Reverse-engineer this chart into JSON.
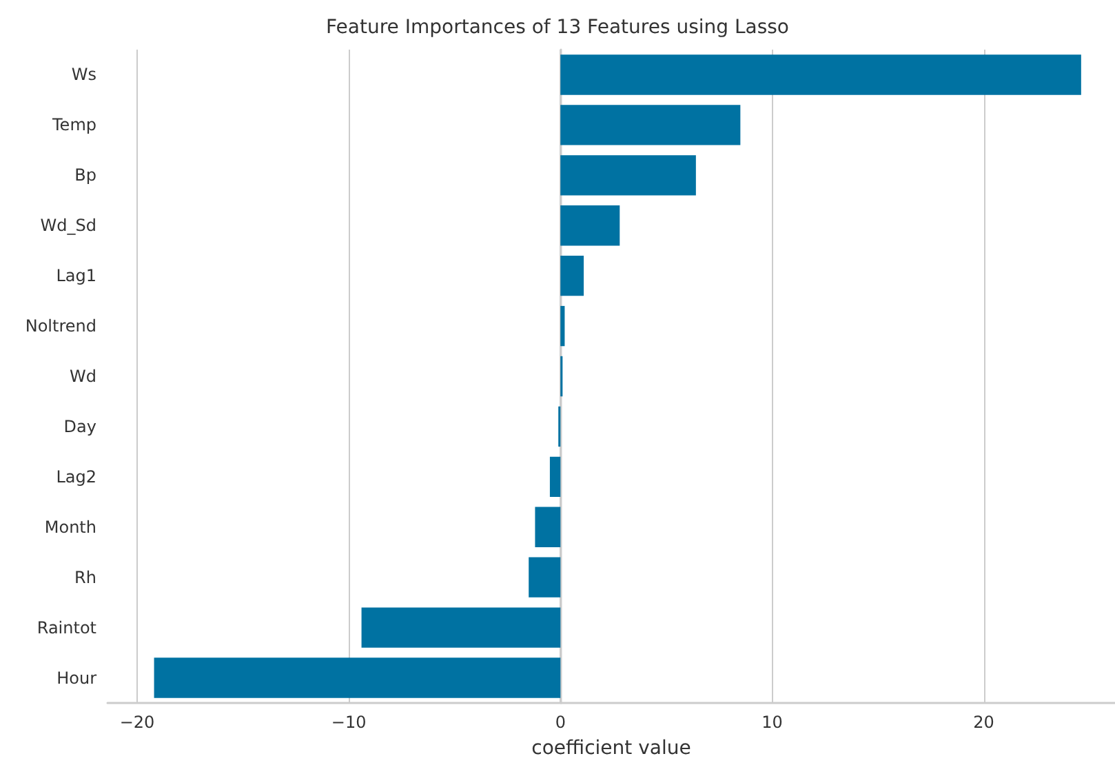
{
  "chart_data": {
    "type": "bar",
    "orientation": "horizontal",
    "title": "Feature Importances of 13 Features using Lasso",
    "xlabel": "coefficient value",
    "categories": [
      "Ws",
      "Temp",
      "Bp",
      "Wd_Sd",
      "Lag1",
      "Noltrend",
      "Wd",
      "Day",
      "Lag2",
      "Month",
      "Rh",
      "Raintot",
      "Hour"
    ],
    "values": [
      24.6,
      8.5,
      6.4,
      2.8,
      1.1,
      0.2,
      0.1,
      -0.1,
      -0.5,
      -1.2,
      -1.5,
      -9.4,
      -19.2
    ],
    "color": "#0072a2",
    "xlim": [
      -21.4,
      26.2
    ],
    "xticks": [
      -20,
      -10,
      0,
      10,
      20
    ],
    "grid": "x"
  }
}
